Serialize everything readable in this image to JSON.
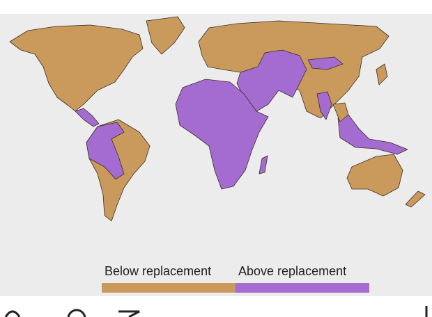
{
  "legend": {
    "items": [
      {
        "label": "Below replacement",
        "color": "#c99a5c"
      },
      {
        "label": "Above replacement",
        "color": "#a46bd0"
      }
    ]
  }
}
